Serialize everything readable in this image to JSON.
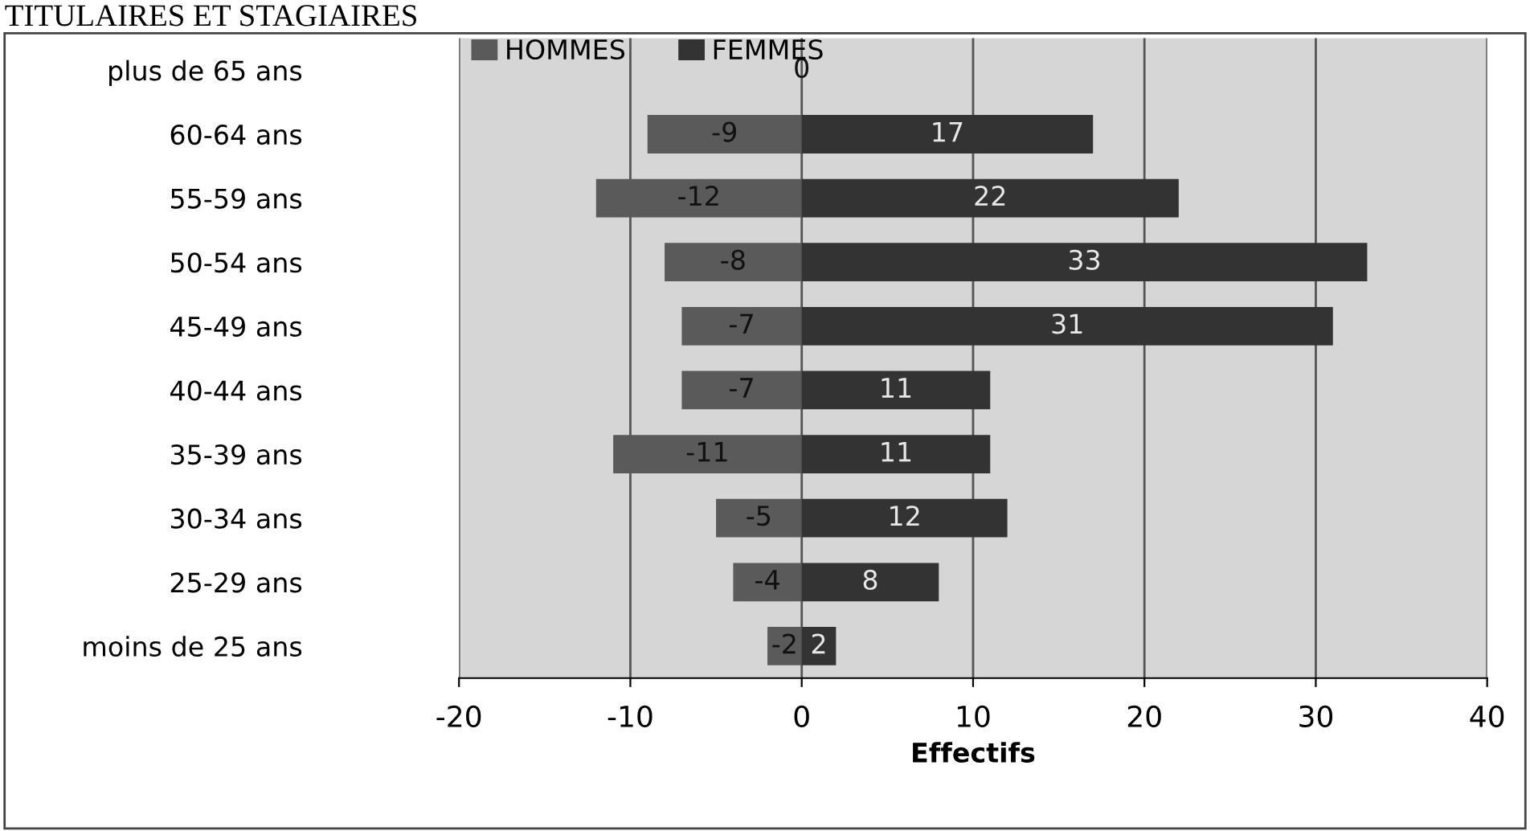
{
  "chart_data": {
    "type": "bar",
    "orientation": "horizontal",
    "stacked": true,
    "title": "TITULAIRES ET STAGIAIRES",
    "xlabel": "Effectifs",
    "categories": [
      "plus de 65 ans",
      "60-64 ans",
      "55-59 ans",
      "50-54 ans",
      "45-49 ans",
      "40-44 ans",
      "35-39 ans",
      "30-34 ans",
      "25-29 ans",
      "moins de 25 ans"
    ],
    "series": [
      {
        "name": "HOMMES",
        "color": "#5a5a5a",
        "values": [
          0,
          -9,
          -12,
          -8,
          -7,
          -7,
          -11,
          -5,
          -4,
          -2
        ],
        "value_labels": [
          null,
          "-9",
          "-12",
          "-8",
          "-7",
          "-7",
          "-11",
          "-5",
          "-4",
          "-2"
        ]
      },
      {
        "name": "FEMMES",
        "color": "#333333",
        "values": [
          0,
          17,
          22,
          33,
          31,
          11,
          11,
          12,
          8,
          2
        ],
        "value_labels": [
          "0",
          "17",
          "22",
          "33",
          "31",
          "11",
          "11",
          "12",
          "8",
          "2"
        ]
      }
    ],
    "xlim": [
      -20,
      40
    ],
    "xticks": [
      -20,
      -10,
      0,
      10,
      20,
      30,
      40
    ],
    "grid": "x",
    "legend": "top left"
  }
}
